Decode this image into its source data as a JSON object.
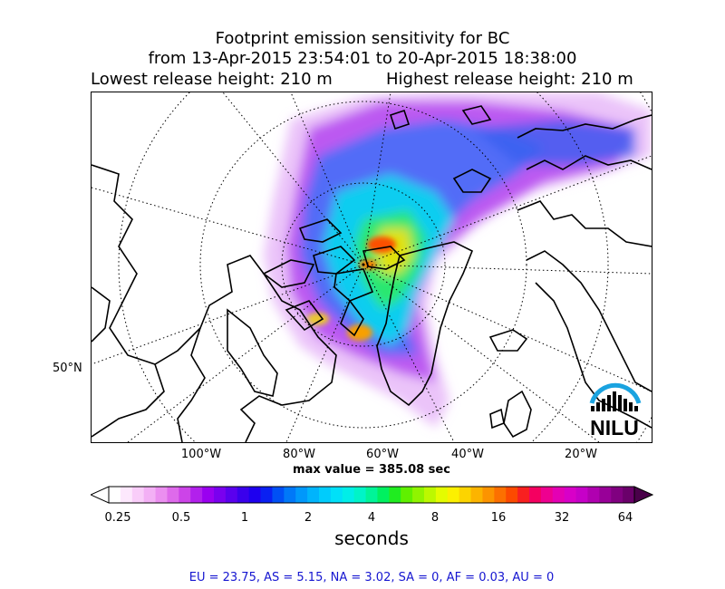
{
  "title": {
    "line1": "Footprint emission sensitivity for BC",
    "line2": "from 13-Apr-2015 23:54:01 to 20-Apr-2015 18:38:00",
    "lowest": "Lowest release height: 210 m",
    "highest": "Highest release height: 210 m"
  },
  "map": {
    "longitude_labels": [
      "100°W",
      "80°W",
      "60°W",
      "40°W",
      "20°W"
    ],
    "latitude_labels": [
      "50°N"
    ],
    "logo_text": "NILU",
    "logo_color": "#1aa3e0"
  },
  "max_value": "max value = 385.08 sec",
  "colorbar": {
    "tick_labels": [
      "0.25",
      "0.5",
      "1",
      "2",
      "4",
      "8",
      "16",
      "32",
      "64"
    ],
    "units": "seconds",
    "colors": [
      "#ffffff",
      "#fde8fd",
      "#f9cdf9",
      "#f3b0f5",
      "#eb8ff0",
      "#de6aeb",
      "#cc44e8",
      "#b220ec",
      "#9a00f0",
      "#7a00ef",
      "#5a00ee",
      "#3a00ec",
      "#1e00ef",
      "#0a20f2",
      "#0050f5",
      "#0078f8",
      "#0098fb",
      "#00b4fc",
      "#00ccfc",
      "#00e0f8",
      "#00eee8",
      "#00f4c8",
      "#00f498",
      "#00f060",
      "#20ec20",
      "#60f000",
      "#90f400",
      "#bcf800",
      "#e4fc00",
      "#fcf000",
      "#fcd400",
      "#fcb400",
      "#fc9400",
      "#fc7000",
      "#fc4a00",
      "#f82020",
      "#f40060",
      "#ee0090",
      "#e400b4",
      "#d800c8",
      "#c600c8",
      "#b000b0",
      "#980098",
      "#800080",
      "#6a006a"
    ]
  },
  "region_totals": "EU = 23.75,  AS = 5.15,  NA = 3.02,  SA = 0,  AF = 0.03,  AU = 0"
}
